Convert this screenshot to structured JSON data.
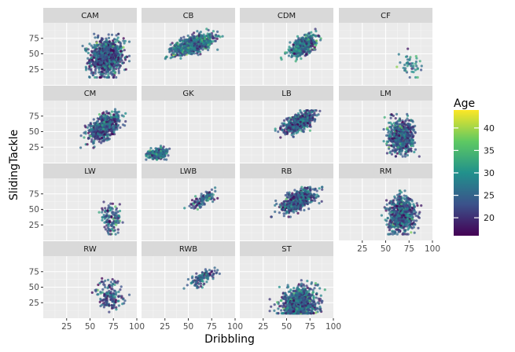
{
  "chart_data": {
    "type": "scatter",
    "xlabel": "Dribbling",
    "ylabel": "SlidingTackle",
    "xlim": [
      0,
      100
    ],
    "ylim": [
      0,
      100
    ],
    "x_ticks": [
      25,
      50,
      75,
      100
    ],
    "y_ticks": [
      25,
      50,
      75
    ],
    "facet_layout": {
      "columns": 4,
      "rows": 4
    },
    "color_scale": {
      "title": "Age",
      "palette": "viridis",
      "min": 16,
      "max": 44,
      "ticks": [
        20,
        25,
        30,
        35,
        40
      ],
      "colors": [
        "#440154",
        "#3b528b",
        "#21918c",
        "#5ec962",
        "#fde725"
      ]
    },
    "panel_background": "#ebebeb",
    "strip_background": "#d9d9d9",
    "facets": [
      {
        "label": "CAM",
        "n": 900,
        "x_mean": 68,
        "x_sd": 9,
        "y_mean": 45,
        "y_sd": 15,
        "corr": 0.1,
        "x_range": [
          32,
          92
        ],
        "y_range": [
          12,
          82
        ],
        "age_mean": 24
      },
      {
        "label": "CB",
        "n": 800,
        "x_mean": 55,
        "x_sd": 11,
        "y_mean": 65,
        "y_sd": 8,
        "corr": 0.6,
        "x_range": [
          18,
          88
        ],
        "y_range": [
          42,
          90
        ],
        "age_mean": 26
      },
      {
        "label": "CDM",
        "n": 500,
        "x_mean": 68,
        "x_sd": 7,
        "y_mean": 63,
        "y_sd": 8,
        "corr": 0.6,
        "x_range": [
          40,
          88
        ],
        "y_range": [
          30,
          90
        ],
        "age_mean": 26
      },
      {
        "label": "CF",
        "n": 45,
        "x_mean": 78,
        "x_sd": 6,
        "y_mean": 32,
        "y_sd": 10,
        "corr": 0.0,
        "x_range": [
          62,
          92
        ],
        "y_range": [
          12,
          64
        ],
        "age_mean": 27
      },
      {
        "label": "CM",
        "n": 600,
        "x_mean": 65,
        "x_sd": 8,
        "y_mean": 58,
        "y_sd": 11,
        "corr": 0.5,
        "x_range": [
          40,
          88
        ],
        "y_range": [
          20,
          86
        ],
        "age_mean": 24
      },
      {
        "label": "GK",
        "n": 300,
        "x_mean": 17,
        "x_sd": 5,
        "y_mean": 14,
        "y_sd": 4,
        "corr": 0.1,
        "x_range": [
          5,
          32
        ],
        "y_range": [
          5,
          27
        ],
        "age_mean": 26
      },
      {
        "label": "LB",
        "n": 600,
        "x_mean": 63,
        "x_sd": 8,
        "y_mean": 65,
        "y_sd": 8,
        "corr": 0.6,
        "x_range": [
          38,
          88
        ],
        "y_range": [
          40,
          84
        ],
        "age_mean": 24
      },
      {
        "label": "LM",
        "n": 600,
        "x_mean": 67,
        "x_sd": 7,
        "y_mean": 42,
        "y_sd": 14,
        "corr": 0.05,
        "x_range": [
          48,
          88
        ],
        "y_range": [
          10,
          78
        ],
        "age_mean": 24
      },
      {
        "label": "LW",
        "n": 130,
        "x_mean": 72,
        "x_sd": 6,
        "y_mean": 35,
        "y_sd": 12,
        "corr": 0.0,
        "x_range": [
          58,
          90
        ],
        "y_range": [
          10,
          62
        ],
        "age_mean": 24
      },
      {
        "label": "LWB",
        "n": 110,
        "x_mean": 65,
        "x_sd": 7,
        "y_mean": 66,
        "y_sd": 7,
        "corr": 0.7,
        "x_range": [
          46,
          82
        ],
        "y_range": [
          48,
          86
        ],
        "age_mean": 24
      },
      {
        "label": "RB",
        "n": 600,
        "x_mean": 63,
        "x_sd": 9,
        "y_mean": 65,
        "y_sd": 9,
        "corr": 0.6,
        "x_range": [
          26,
          88
        ],
        "y_range": [
          38,
          86
        ],
        "age_mean": 24
      },
      {
        "label": "RM",
        "n": 700,
        "x_mean": 67,
        "x_sd": 7,
        "y_mean": 42,
        "y_sd": 14,
        "corr": 0.05,
        "x_range": [
          40,
          88
        ],
        "y_range": [
          10,
          80
        ],
        "age_mean": 24
      },
      {
        "label": "RW",
        "n": 160,
        "x_mean": 72,
        "x_sd": 7,
        "y_mean": 35,
        "y_sd": 13,
        "corr": 0.0,
        "x_range": [
          50,
          92
        ],
        "y_range": [
          10,
          64
        ],
        "age_mean": 23
      },
      {
        "label": "RWB",
        "n": 120,
        "x_mean": 65,
        "x_sd": 7,
        "y_mean": 65,
        "y_sd": 7,
        "corr": 0.7,
        "x_range": [
          44,
          84
        ],
        "y_range": [
          48,
          92
        ],
        "age_mean": 24
      },
      {
        "label": "ST",
        "n": 900,
        "x_mean": 64,
        "x_sd": 9,
        "y_mean": 25,
        "y_sd": 12,
        "corr": 0.1,
        "x_range": [
          32,
          92
        ],
        "y_range": [
          8,
          64
        ],
        "age_mean": 25
      }
    ]
  }
}
